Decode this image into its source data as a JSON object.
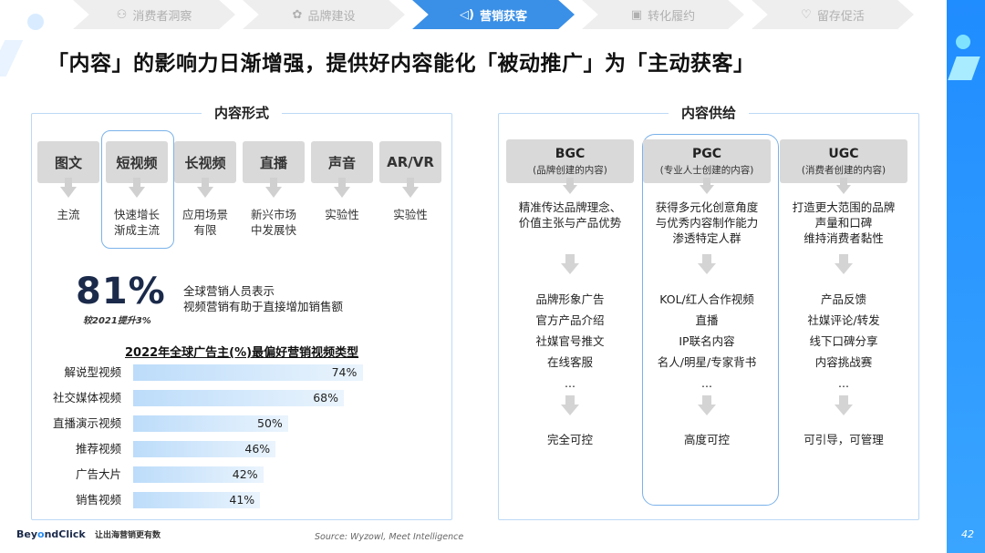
{
  "nav": {
    "steps": [
      {
        "label": "消费者洞察",
        "icon": "people-search-icon"
      },
      {
        "label": "品牌建设",
        "icon": "brand-icon"
      },
      {
        "label": "营销获客",
        "icon": "megaphone-icon",
        "active": true
      },
      {
        "label": "转化履约",
        "icon": "box-icon"
      },
      {
        "label": "留存促活",
        "icon": "heart-icon"
      }
    ]
  },
  "title": "「内容」的影响力日渐增强，提供好内容能化「被动推广」为「主动获客」",
  "left_panel": {
    "title": "内容形式",
    "formats": [
      {
        "name": "图文",
        "desc": "主流"
      },
      {
        "name": "短视频",
        "desc": "快速增长\n渐成主流"
      },
      {
        "name": "长视频",
        "desc": "应用场景\n有限"
      },
      {
        "name": "直播",
        "desc": "新兴市场\n中发展快"
      },
      {
        "name": "声音",
        "desc": "实验性"
      },
      {
        "name": "AR/VR",
        "desc": "实验性"
      }
    ],
    "stat": {
      "value": "81%",
      "sub": "较2021提升3%",
      "desc": "全球营销人员表示\n视频营销有助于直接增加销售额"
    }
  },
  "chart_data": {
    "type": "bar",
    "orientation": "horizontal",
    "title": "2022年全球广告主(%)最偏好营销视频类型",
    "categories": [
      "解说型视频",
      "社交媒体视频",
      "直播演示视频",
      "推荐视频",
      "广告大片",
      "销售视频"
    ],
    "values": [
      74,
      68,
      50,
      46,
      42,
      41
    ],
    "value_labels": [
      "74%",
      "68%",
      "50%",
      "46%",
      "42%",
      "41%"
    ],
    "unit": "%",
    "xlim": [
      0,
      100
    ]
  },
  "right_panel": {
    "title": "内容供给",
    "columns": [
      {
        "name": "BGC",
        "sub": "(品牌创建的内容)",
        "text": "精准传达品牌理念、\n价值主张与产品优势",
        "items": [
          "品牌形象广告",
          "官方产品介绍",
          "社媒官号推文",
          "在线客服",
          "..."
        ],
        "final": "完全可控"
      },
      {
        "name": "PGC",
        "sub": "(专业人士创建的内容)",
        "text": "获得多元化创意角度\n与优秀内容制作能力\n渗透特定人群",
        "items": [
          "KOL/红人合作视频",
          "直播",
          "IP联名内容",
          "名人/明星/专家背书",
          "..."
        ],
        "final": "高度可控"
      },
      {
        "name": "UGC",
        "sub": "(消费者创建的内容)",
        "text": "打造更大范围的品牌\n声量和口碑\n维持消费者黏性",
        "items": [
          "产品反馈",
          "社媒评论/转发",
          "线下口碑分享",
          "内容挑战赛",
          "..."
        ],
        "final": "可引导，可管理"
      }
    ]
  },
  "footer": {
    "logo_pre": "Bey",
    "logo_o": "o",
    "logo_post": "ndClick",
    "slogan": "让出海营销更有数",
    "source": "Source: Wyzowl, Meet Intelligence",
    "page": "42"
  }
}
